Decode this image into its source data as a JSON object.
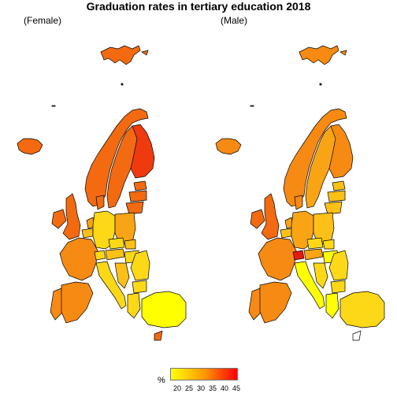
{
  "title": "Graduation rates in tertiary education 2018",
  "panels": [
    {
      "label": "(Female)"
    },
    {
      "label": "(Male)"
    }
  ],
  "legend": {
    "unit": "%",
    "ticks": [
      "20",
      "25",
      "30",
      "35",
      "40",
      "45"
    ],
    "color_low": "#ffff00",
    "color_mid": "#ff9900",
    "color_high": "#ff0000"
  },
  "colors": {
    "very_high": "#ee3a0e",
    "high": "#f36a10",
    "mid_high": "#f68a12",
    "mid": "#f9a414",
    "mid_low": "#fcc016",
    "low": "#fdd817",
    "very_low": "#ffff00",
    "peak": "#e81a0c",
    "outline": "#000000"
  }
}
